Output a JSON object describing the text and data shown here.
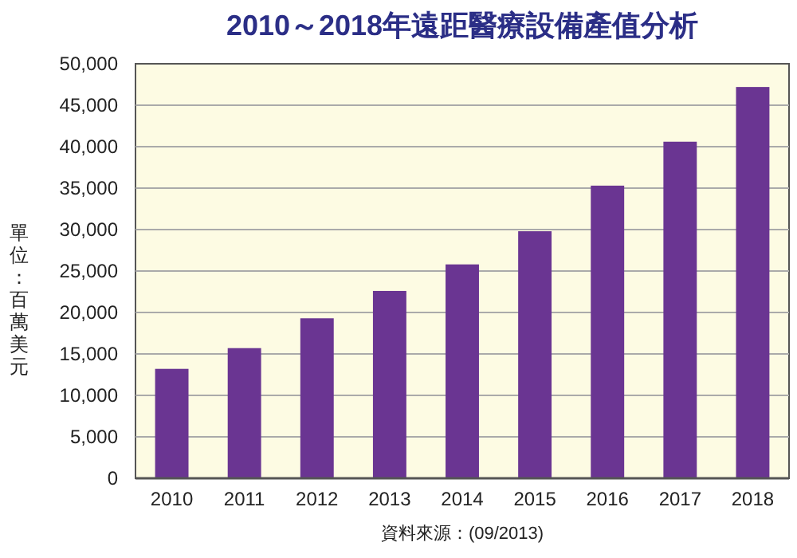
{
  "chart_data": {
    "type": "bar",
    "title": "2010～2018年遠距醫療設備產值分析",
    "ylabel": "單位：百萬美元",
    "categories": [
      "2010",
      "2011",
      "2012",
      "2013",
      "2014",
      "2015",
      "2016",
      "2017",
      "2018"
    ],
    "values": [
      13200,
      15700,
      19300,
      22600,
      25800,
      29800,
      35300,
      40600,
      47200
    ],
    "color": "#6a3592",
    "ylim": [
      0,
      50000
    ],
    "yticks": [
      {
        "value": 0,
        "label": "0"
      },
      {
        "value": 5000,
        "label": "5,000"
      },
      {
        "value": 10000,
        "label": "10,000"
      },
      {
        "value": 15000,
        "label": "15,000"
      },
      {
        "value": 20000,
        "label": "20,000"
      },
      {
        "value": 25000,
        "label": "25,000"
      },
      {
        "value": 30000,
        "label": "30,000"
      },
      {
        "value": 35000,
        "label": "35,000"
      },
      {
        "value": 40000,
        "label": "40,000"
      },
      {
        "value": 45000,
        "label": "45,000"
      },
      {
        "value": 50000,
        "label": "50,000"
      }
    ],
    "grid": "y",
    "annotations": [
      "資料來源：(09/2013)"
    ]
  }
}
